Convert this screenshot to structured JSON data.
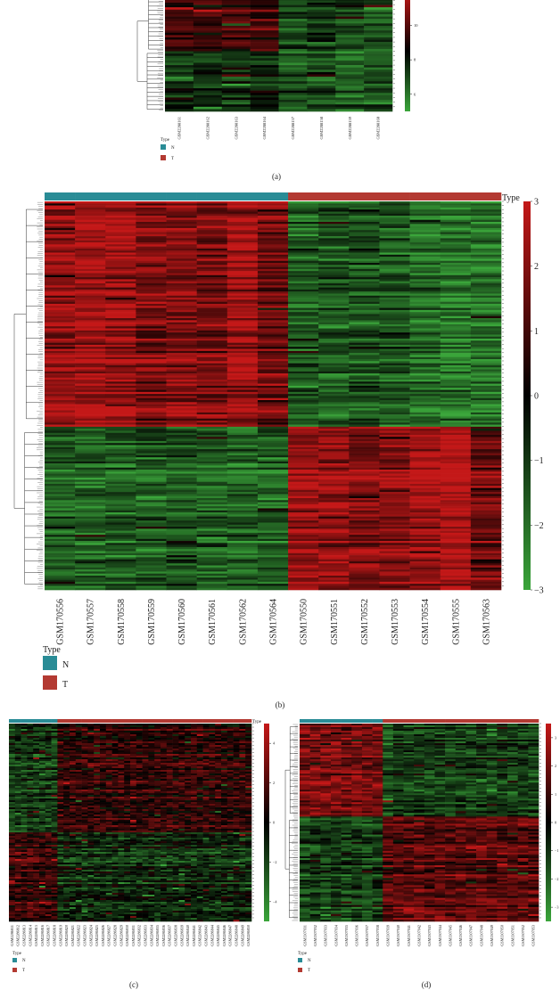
{
  "colors": {
    "normal": "#2a8c96",
    "tumor": "#b33a32",
    "high": "#c41818",
    "mid": "#000000",
    "low": "#3aa53a"
  },
  "chart_data": [
    {
      "id": "a",
      "type": "heatmap",
      "caption": "(a)",
      "legend_title": "Type",
      "groups": [
        "N",
        "T"
      ],
      "columns": [
        "GSM2288161",
        "GSM2288162",
        "GSM2288163",
        "GSM2288164",
        "GSM2288157",
        "GSM2288158",
        "GSM2288159",
        "GSM2288160"
      ],
      "column_groups": [
        "N",
        "N",
        "N",
        "N",
        "T",
        "T",
        "T",
        "T"
      ],
      "colorbar_ticks": [
        "10",
        "8",
        "6"
      ],
      "colorbar_range": [
        5,
        12
      ],
      "clusters": [
        {
          "fraction": 0.5,
          "values": [
            0.35,
            0.3,
            0.3,
            0.28,
            -0.35,
            -0.3,
            -0.4,
            -0.45
          ]
        },
        {
          "fraction": 0.5,
          "values": [
            -0.3,
            -0.25,
            -0.3,
            -0.25,
            -0.5,
            -0.45,
            -0.55,
            -0.5
          ]
        }
      ]
    },
    {
      "id": "b",
      "type": "heatmap",
      "caption": "(b)",
      "legend_title": "Type",
      "groups": [
        "N",
        "T"
      ],
      "columns": [
        "GSM170556",
        "GSM170557",
        "GSM170558",
        "GSM170559",
        "GSM170560",
        "GSM170561",
        "GSM170562",
        "GSM170564",
        "GSM170550",
        "GSM170551",
        "GSM170552",
        "GSM170553",
        "GSM170554",
        "GSM170555",
        "GSM170563"
      ],
      "column_groups": [
        "N",
        "N",
        "N",
        "N",
        "N",
        "N",
        "N",
        "N",
        "T",
        "T",
        "T",
        "T",
        "T",
        "T",
        "T"
      ],
      "colorbar_ticks": [
        "3",
        "2",
        "1",
        "0",
        "-1",
        "-2",
        "-3"
      ],
      "colorbar_range": [
        -3,
        3
      ],
      "clusters": [
        {
          "fraction": 0.58,
          "values": [
            0.75,
            0.85,
            0.8,
            0.6,
            0.65,
            0.6,
            0.8,
            0.55,
            -0.55,
            -0.5,
            -0.45,
            -0.5,
            -0.65,
            -0.75,
            -0.65
          ]
        },
        {
          "fraction": 0.42,
          "values": [
            -0.55,
            -0.6,
            -0.55,
            -0.5,
            -0.5,
            -0.55,
            -0.6,
            -0.55,
            0.75,
            0.7,
            0.65,
            0.7,
            0.85,
            0.95,
            0.55
          ]
        }
      ]
    },
    {
      "id": "c",
      "type": "heatmap",
      "caption": "(c)",
      "legend_title": "Type",
      "groups": [
        "N",
        "T"
      ],
      "columns": [
        "GSM2286811",
        "GSM2286812",
        "GSM2286813",
        "GSM2286814",
        "GSM2286815",
        "GSM2286816",
        "GSM2286817",
        "GSM2286818",
        "GSM2286819",
        "GSM2286820",
        "GSM2286821",
        "GSM2286822",
        "GSM2286823",
        "GSM2286824",
        "GSM2286825",
        "GSM2286826",
        "GSM2286827",
        "GSM2286828",
        "GSM2286829",
        "GSM2286830",
        "GSM2286831",
        "GSM2286832",
        "GSM2286833",
        "GSM2286834",
        "GSM2286835",
        "GSM2286836",
        "GSM2286837",
        "GSM2286838",
        "GSM2286839",
        "GSM2286840",
        "GSM2286841",
        "GSM2286842",
        "GSM2286843",
        "GSM2286844",
        "GSM2286845",
        "GSM2286846",
        "GSM2286847",
        "GSM2286848",
        "GSM2286849",
        "GSM2286850"
      ],
      "column_groups": [
        "N",
        "N",
        "N",
        "N",
        "N",
        "N",
        "N",
        "N",
        "T",
        "T",
        "T",
        "T",
        "T",
        "T",
        "T",
        "T",
        "T",
        "T",
        "T",
        "T",
        "T",
        "T",
        "T",
        "T",
        "T",
        "T",
        "T",
        "T",
        "T",
        "T",
        "T",
        "T",
        "T",
        "T",
        "T",
        "T",
        "T",
        "T",
        "T",
        "T"
      ],
      "colorbar_ticks": [
        "4",
        "2",
        "0",
        "-2",
        "-4"
      ],
      "colorbar_range": [
        -5,
        5
      ],
      "clusters": [
        {
          "fraction": 0.55,
          "values": [
            -0.35,
            -0.3,
            -0.35,
            -0.3,
            -0.35,
            -0.3,
            -0.3,
            -0.35,
            0.25,
            0.2,
            0.25,
            0.2,
            0.25,
            0.2,
            0.25,
            0.2,
            0.25,
            0.2,
            0.25,
            0.2,
            0.25,
            0.2,
            0.25,
            0.2,
            0.25,
            0.2,
            0.25,
            0.2,
            0.25,
            0.2,
            0.25,
            0.2,
            0.25,
            0.2,
            0.25,
            0.2,
            0.25,
            0.2,
            0.25,
            0.2
          ]
        },
        {
          "fraction": 0.45,
          "values": [
            0.3,
            0.35,
            0.3,
            0.35,
            0.3,
            0.3,
            0.35,
            0.3,
            -0.3,
            -0.25,
            -0.3,
            -0.25,
            -0.3,
            -0.25,
            -0.3,
            -0.25,
            -0.3,
            -0.25,
            -0.3,
            -0.25,
            -0.3,
            -0.25,
            -0.3,
            -0.25,
            -0.3,
            -0.25,
            -0.3,
            -0.25,
            -0.3,
            -0.25,
            -0.3,
            -0.25,
            -0.3,
            -0.25,
            -0.3,
            -0.25,
            -0.3,
            -0.25,
            -0.3,
            -0.25
          ]
        }
      ]
    },
    {
      "id": "d",
      "type": "heatmap",
      "caption": "(d)",
      "legend_title": "Type",
      "groups": [
        "N",
        "T"
      ],
      "columns": [
        "GSM1307031",
        "GSM1307032",
        "GSM1307033",
        "GSM1307034",
        "GSM1307035",
        "GSM1307036",
        "GSM1307037",
        "GSM1307038",
        "GSM1307039",
        "GSM1307040",
        "GSM1307041",
        "GSM1307042",
        "GSM1307043",
        "GSM1307044",
        "GSM1307045",
        "GSM1307046",
        "GSM1307047",
        "GSM1307048",
        "GSM1307049",
        "GSM1307050",
        "GSM1307051",
        "GSM1307052",
        "GSM1307053"
      ],
      "column_groups": [
        "N",
        "N",
        "N",
        "N",
        "N",
        "N",
        "N",
        "N",
        "T",
        "T",
        "T",
        "T",
        "T",
        "T",
        "T",
        "T",
        "T",
        "T",
        "T",
        "T",
        "T",
        "T",
        "T"
      ],
      "colorbar_ticks": [
        "3",
        "2",
        "1",
        "0",
        "-1",
        "-2",
        "-3"
      ],
      "colorbar_range": [
        -3.5,
        3.5
      ],
      "clusters": [
        {
          "fraction": 0.47,
          "values": [
            0.55,
            0.6,
            0.55,
            0.6,
            0.55,
            0.6,
            0.55,
            0.55,
            -0.35,
            -0.3,
            -0.35,
            -0.3,
            -0.35,
            -0.3,
            -0.35,
            -0.3,
            -0.35,
            -0.3,
            -0.35,
            -0.3,
            -0.35,
            -0.3,
            -0.35
          ]
        },
        {
          "fraction": 0.53,
          "values": [
            -0.4,
            -0.35,
            -0.4,
            -0.35,
            -0.4,
            -0.35,
            -0.4,
            -0.35,
            0.45,
            0.5,
            0.45,
            0.5,
            0.45,
            0.5,
            0.45,
            0.5,
            0.45,
            0.5,
            0.45,
            0.5,
            0.45,
            0.5,
            0.45
          ]
        }
      ]
    }
  ]
}
